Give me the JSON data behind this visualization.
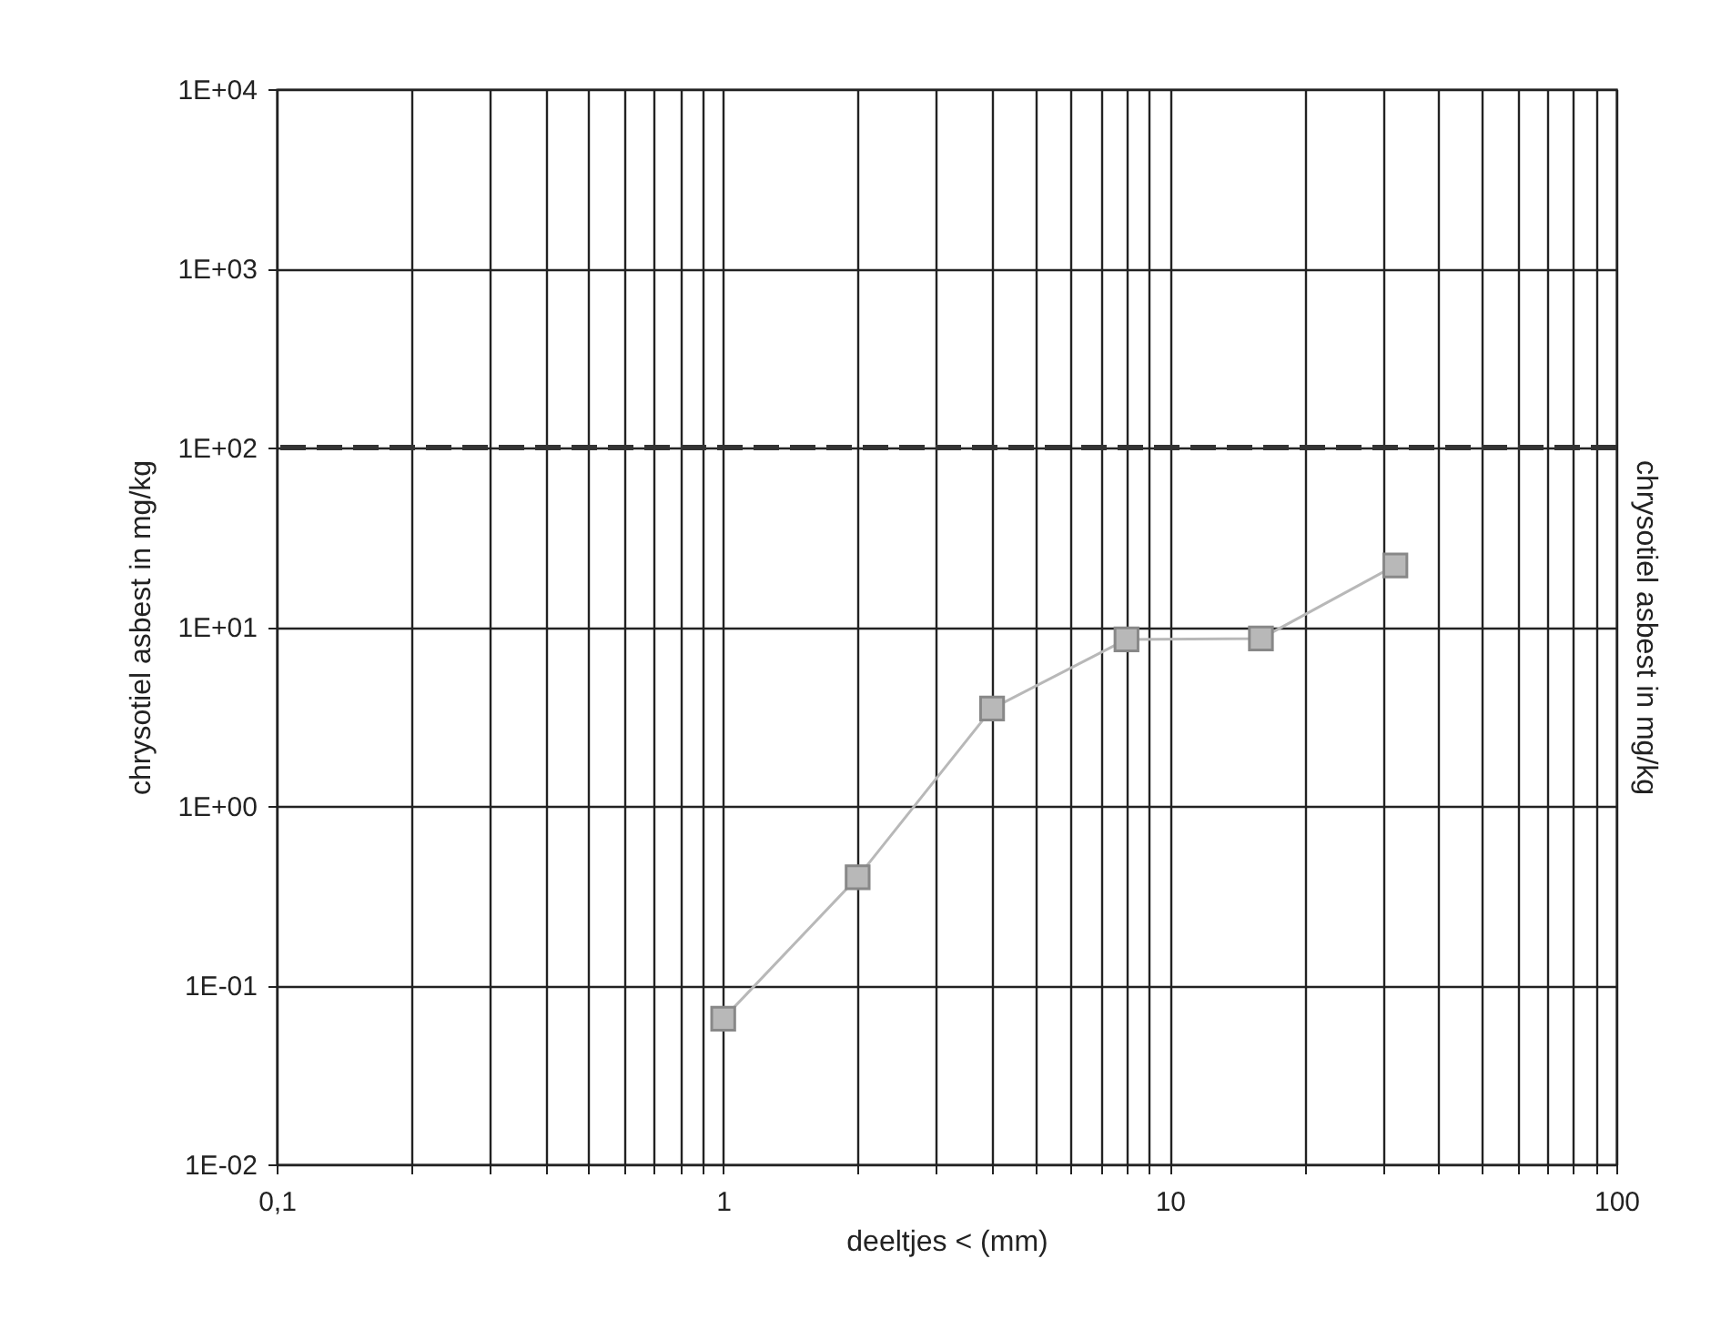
{
  "chart_data": {
    "type": "line",
    "xlabel": "deeltjes  <  (mm)",
    "ylabel": "chrysotiel asbest in mg/kg",
    "y2label": "chrysotiel asbest in mg/kg",
    "log": "xy",
    "grid": true,
    "marker": "square",
    "line_style": "solid",
    "xlim": [
      0.1,
      100
    ],
    "ylim": [
      0.01,
      10000
    ],
    "xticks": [
      {
        "value": 0.1,
        "label": "0,1"
      },
      {
        "value": 0.2,
        "label": null
      },
      {
        "value": 0.3,
        "label": null
      },
      {
        "value": 0.4,
        "label": null
      },
      {
        "value": 0.5,
        "label": null
      },
      {
        "value": 0.6,
        "label": null
      },
      {
        "value": 0.7,
        "label": null
      },
      {
        "value": 0.8,
        "label": null
      },
      {
        "value": 0.9,
        "label": null
      },
      1,
      {
        "value": 2,
        "label": null
      },
      {
        "value": 3,
        "label": null
      },
      {
        "value": 4,
        "label": null
      },
      {
        "value": 5,
        "label": null
      },
      {
        "value": 6,
        "label": null
      },
      {
        "value": 7,
        "label": null
      },
      {
        "value": 8,
        "label": null
      },
      {
        "value": 9,
        "label": null
      },
      10,
      {
        "value": 20,
        "label": null
      },
      {
        "value": 30,
        "label": null
      },
      {
        "value": 40,
        "label": null
      },
      {
        "value": 50,
        "label": null
      },
      {
        "value": 60,
        "label": null
      },
      {
        "value": 70,
        "label": null
      },
      {
        "value": 80,
        "label": null
      },
      {
        "value": 90,
        "label": null
      },
      100
    ],
    "yticks": [
      {
        "value": 0.01,
        "label": "1E-02"
      },
      {
        "value": 0.1,
        "label": "1E-01"
      },
      {
        "value": 1,
        "label": "1E+00"
      },
      {
        "value": 10,
        "label": "1E+01"
      },
      {
        "value": 100,
        "label": "1E+02"
      },
      {
        "value": 1000,
        "label": "1E+03"
      },
      {
        "value": 10000,
        "label": "1E+04"
      }
    ],
    "x": [
      1,
      2,
      4,
      8,
      16,
      32
    ],
    "series": [
      {
        "color": "#b8b8b8",
        "values": [
          0.065,
          0.4,
          3.5,
          8.5,
          8.6,
          22
        ]
      }
    ],
    "ref_lines": [
      {
        "axis": "y",
        "value": 100,
        "color": "#333333",
        "line_style": "dashed"
      }
    ]
  }
}
